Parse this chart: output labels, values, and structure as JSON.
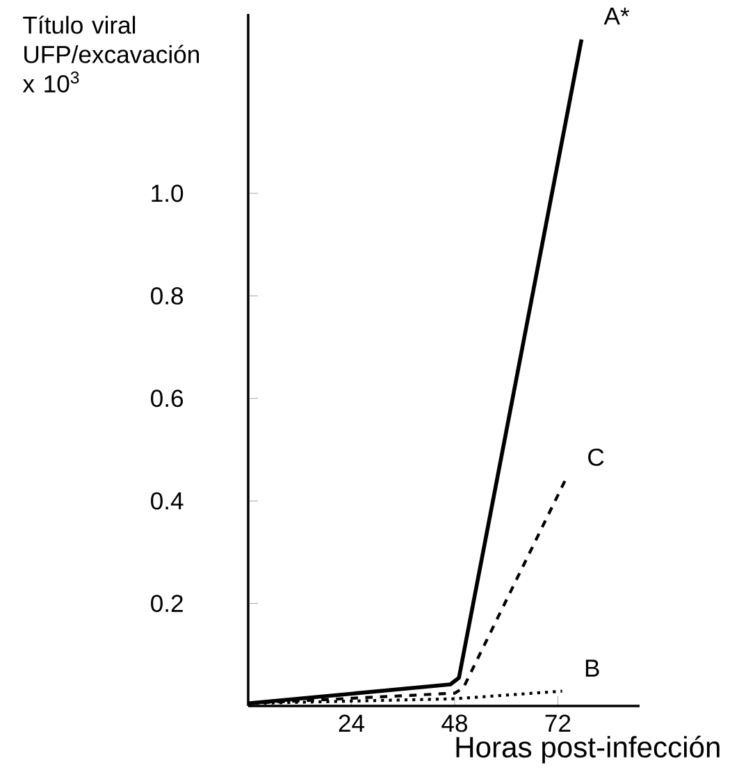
{
  "chart_data": {
    "type": "line",
    "ylabel": "Título viral UFP/excavación x 10$^{3}$",
    "xlabel": "Horas post-infección",
    "xlim": [
      0,
      91
    ],
    "xticks": [
      24,
      48,
      72
    ],
    "ylim": [
      0,
      1.35
    ],
    "yticks": [
      0.2,
      0.4,
      0.6,
      0.8,
      {
        "value": 1.0,
        "label": "1.0"
      }
    ],
    "grid": false,
    "marker": "none",
    "series": [
      {
        "name": "A*",
        "color": "#000000",
        "line_style": "solid",
        "x": [
          0,
          47,
          49,
          77.5
        ],
        "values": [
          0.005,
          0.042,
          0.055,
          1.3
        ]
      },
      {
        "name": "C",
        "color": "#000000",
        "line_style": "dashed",
        "x": [
          0,
          48,
          50,
          73.7
        ],
        "values": [
          0.005,
          0.025,
          0.035,
          0.44
        ]
      },
      {
        "name": "B",
        "color": "#000000",
        "line_style": "dotted",
        "x": [
          0,
          48,
          73
        ],
        "values": [
          0.005,
          0.014,
          0.029
        ]
      }
    ]
  }
}
